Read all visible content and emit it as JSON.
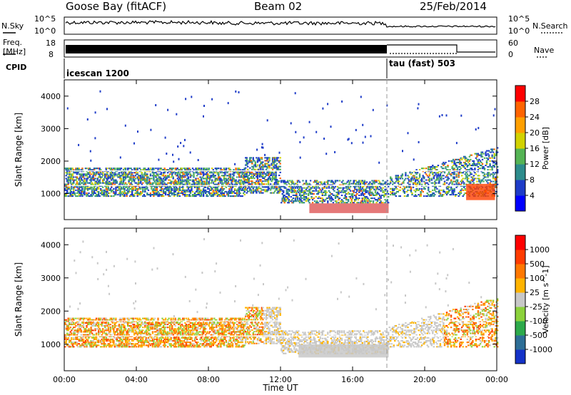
{
  "header": {
    "station": "Goose Bay (fitACF)",
    "beam": "Beam 02",
    "date": "25/Feb/2014"
  },
  "panels": {
    "nsky_label": "N.Sky",
    "nsearch_label": "N.Search",
    "noise_ticks": [
      "10^5",
      "10^0"
    ],
    "freq_label_1": "Freq.",
    "freq_label_2": "[MHz]",
    "freq_ticks": [
      "18",
      "8"
    ],
    "nave_label": "Nave",
    "nave_ticks": [
      "60",
      "0"
    ],
    "cpid_label": "CPID",
    "cpid_1": "icescan 1200",
    "cpid_2": "tau (fast) 503"
  },
  "chart_data": [
    {
      "type": "heatmap",
      "title": "",
      "xlabel": "Time UT",
      "ylabel": "Slant Range [km]",
      "x_ticks": [
        "00:00",
        "04:00",
        "08:00",
        "12:00",
        "16:00",
        "20:00",
        "00:00"
      ],
      "y_ticks": [
        1000,
        2000,
        3000,
        4000
      ],
      "ylim": [
        200,
        4500
      ],
      "colorbar_label": "Power [dB]",
      "colorbar_ticks": [
        "4",
        "8",
        "12",
        "16",
        "20",
        "24",
        "28"
      ],
      "colorbar_colors": [
        "#0000ff",
        "#1e3cc8",
        "#2d8c8c",
        "#55b455",
        "#d2d200",
        "#ffa000",
        "#ff6400",
        "#ff0000"
      ]
    },
    {
      "type": "heatmap",
      "title": "",
      "xlabel": "Time UT",
      "ylabel": "Slant Range [km]",
      "x_ticks": [
        "00:00",
        "04:00",
        "08:00",
        "12:00",
        "16:00",
        "20:00",
        "00:00"
      ],
      "y_ticks": [
        1000,
        2000,
        3000,
        4000
      ],
      "ylim": [
        200,
        4500
      ],
      "colorbar_label": "Velocity [m s^-1]",
      "colorbar_ticks": [
        "1000",
        "500",
        "100",
        "25",
        "-25",
        "-100",
        "-500",
        "-1000"
      ],
      "colorbar_colors": [
        "#1432c8",
        "#2d6e96",
        "#2daa4b",
        "#8cd23c",
        "#c8c8c8",
        "#ffb400",
        "#ff7800",
        "#ff3c00",
        "#ff0000"
      ]
    }
  ]
}
